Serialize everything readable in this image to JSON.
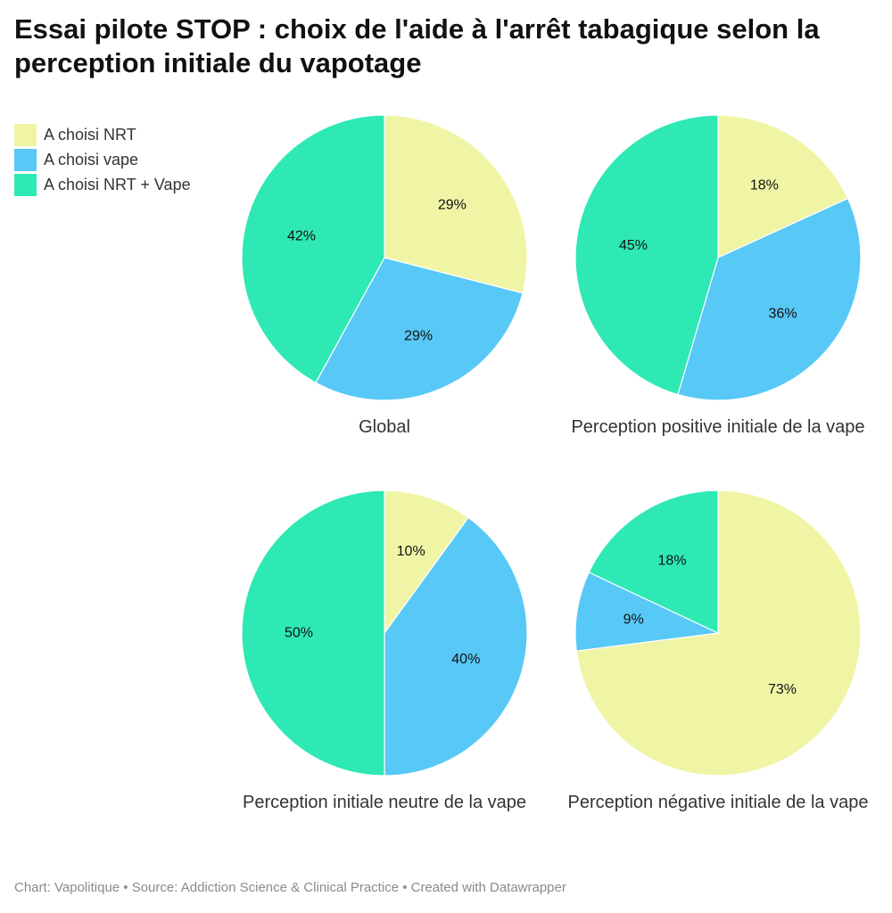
{
  "title": "Essai pilote STOP : choix de l'aide à l'arrêt tabagique selon la perception initiale du vapotage",
  "footer": "Chart: Vapolitique • Source: Addiction Science & Clinical Practice • Created with Datawrapper",
  "legend": [
    {
      "label": "A choisi NRT",
      "color": "#f0f5a6"
    },
    {
      "label": "A choisi vape",
      "color": "#58c8f6"
    },
    {
      "label": "A choisi NRT + Vape",
      "color": "#2ee9b3"
    }
  ],
  "chart_data": [
    {
      "type": "pie",
      "title": "Global",
      "categories": [
        "A choisi NRT",
        "A choisi vape",
        "A choisi NRT + Vape"
      ],
      "values": [
        29,
        29,
        42
      ],
      "labels": [
        "29%",
        "29%",
        "42%"
      ]
    },
    {
      "type": "pie",
      "title": "Perception positive initiale de la vape",
      "categories": [
        "A choisi NRT",
        "A choisi vape",
        "A choisi NRT + Vape"
      ],
      "values": [
        18,
        36,
        45
      ],
      "labels": [
        "18%",
        "36%",
        "45%"
      ]
    },
    {
      "type": "pie",
      "title": "Perception initiale neutre de la vape",
      "categories": [
        "A choisi NRT",
        "A choisi vape",
        "A choisi NRT + Vape"
      ],
      "values": [
        10,
        40,
        50
      ],
      "labels": [
        "10%",
        "40%",
        "50%"
      ]
    },
    {
      "type": "pie",
      "title": "Perception négative initiale de la vape",
      "categories": [
        "A choisi NRT",
        "A choisi vape",
        "A choisi NRT + Vape"
      ],
      "values": [
        73,
        9,
        18
      ],
      "labels": [
        "73%",
        "9%",
        "18%"
      ]
    }
  ]
}
